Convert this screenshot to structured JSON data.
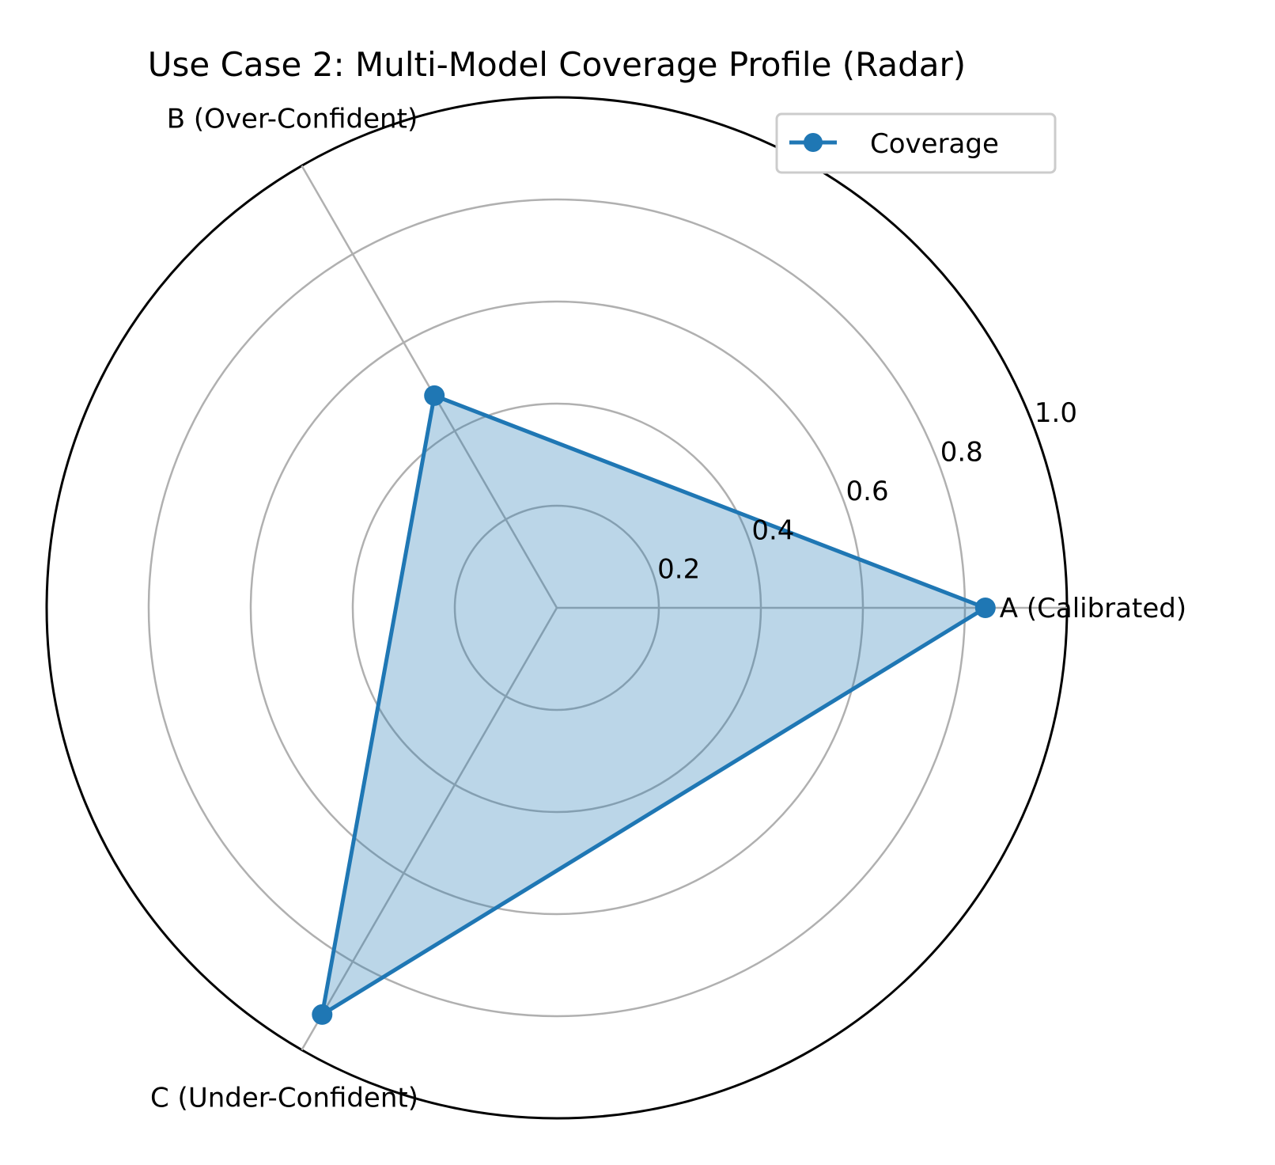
{
  "chart_data": {
    "type": "radar",
    "title": "Use Case 2: Multi-Model Coverage Profile (Radar)",
    "categories": [
      "A (Calibrated)",
      "B (Over-Confident)",
      "C (Under-Confident)"
    ],
    "series": [
      {
        "name": "Coverage",
        "values": [
          0.84,
          0.48,
          0.92
        ]
      }
    ],
    "rlim": [
      0,
      1.0
    ],
    "rticks": [
      0.2,
      0.4,
      0.6,
      0.8,
      1.0
    ],
    "rtick_labels": [
      "0.2",
      "0.4",
      "0.6",
      "0.8",
      "1.0"
    ],
    "grid": true,
    "legend_position": "upper right",
    "colors": {
      "line": "#1f77b4",
      "fill": "#1f77b4",
      "grid": "#b0b0b0",
      "frame": "#000000"
    }
  }
}
